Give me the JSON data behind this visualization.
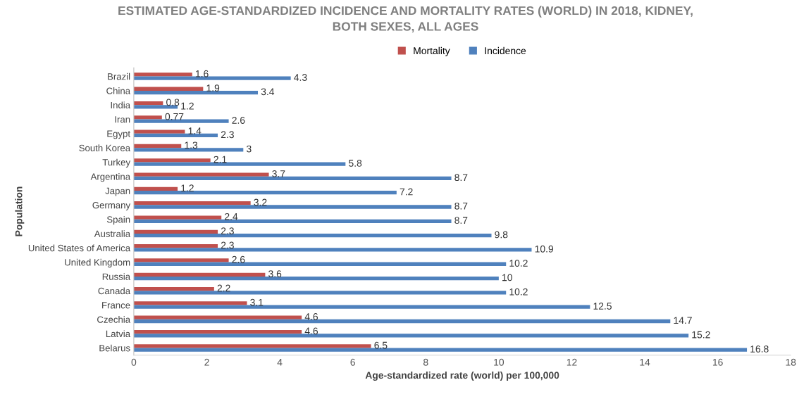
{
  "chart_data": {
    "type": "bar",
    "orientation": "horizontal",
    "title": "ESTIMATED AGE-STANDARDIZED INCIDENCE AND MORTALITY RATES (WORLD) IN 2018, KIDNEY,\nBOTH SEXES, ALL AGES",
    "xlabel": "Age-standardized rate (world) per 100,000",
    "ylabel": "Population",
    "categories": [
      "Brazil",
      "China",
      "India",
      "Iran",
      "Egypt",
      "South Korea",
      "Turkey",
      "Argentina",
      "Japan",
      "Germany",
      "Spain",
      "Australia",
      "United States of America",
      "United Kingdom",
      "Russia",
      "Canada",
      "France",
      "Czechia",
      "Latvia",
      "Belarus"
    ],
    "series": [
      {
        "name": "Mortality",
        "color": "#c0504d",
        "values": [
          1.6,
          1.9,
          0.8,
          0.77,
          1.4,
          1.3,
          2.1,
          3.7,
          1.2,
          3.2,
          2.4,
          2.3,
          2.3,
          2.6,
          3.6,
          2.2,
          3.1,
          4.6,
          4.6,
          6.5
        ]
      },
      {
        "name": "Incidence",
        "color": "#4f81bd",
        "values": [
          4.3,
          3.4,
          1.2,
          2.6,
          2.3,
          3,
          5.8,
          8.7,
          7.2,
          8.7,
          8.7,
          9.8,
          10.9,
          10.2,
          10,
          10.2,
          12.5,
          14.7,
          15.2,
          16.8
        ]
      }
    ],
    "xlim": [
      0,
      18
    ],
    "xticks": [
      0,
      2,
      4,
      6,
      8,
      10,
      12,
      14,
      16,
      18
    ],
    "data_labels": true,
    "grid": false,
    "legend": "top"
  }
}
